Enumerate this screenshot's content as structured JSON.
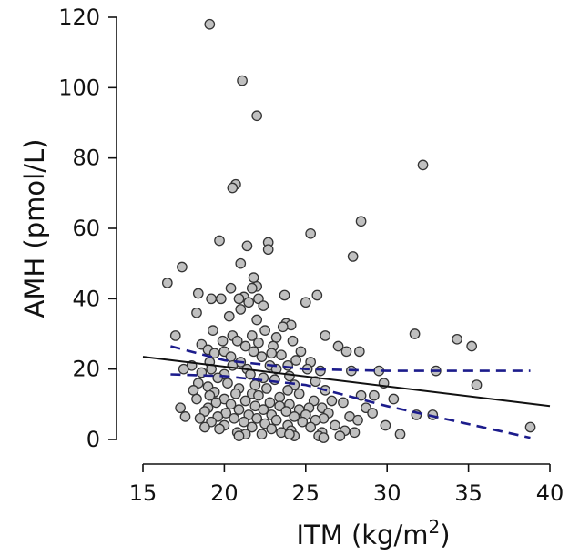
{
  "chart_data": {
    "type": "scatter",
    "xlabel": "ITM (kg/m",
    "xlabel_superscript": "2",
    "xlabel_close": ")",
    "ylabel": "AMH (pmol/L)",
    "xlim": [
      15,
      40
    ],
    "ylim": [
      0,
      120
    ],
    "xticks": [
      "15",
      "20",
      "25",
      "30",
      "35",
      "40"
    ],
    "yticks": [
      "0",
      "20",
      "40",
      "60",
      "80",
      "100",
      "120"
    ],
    "grid": false,
    "colors": {
      "point_fill": "#c0c0c0",
      "point_stroke": "#333333",
      "fit_line": "#111111",
      "ci_band": "#1c1c8c"
    },
    "points": [
      [
        19.1,
        118
      ],
      [
        21.1,
        102
      ],
      [
        22.0,
        92
      ],
      [
        32.2,
        78
      ],
      [
        20.7,
        72.5
      ],
      [
        20.5,
        71.5
      ],
      [
        28.4,
        62
      ],
      [
        25.3,
        58.5
      ],
      [
        19.7,
        56.5
      ],
      [
        22.7,
        56
      ],
      [
        21.4,
        55
      ],
      [
        22.7,
        54
      ],
      [
        27.9,
        52
      ],
      [
        21.0,
        50
      ],
      [
        17.4,
        49
      ],
      [
        21.8,
        46
      ],
      [
        16.5,
        44.5
      ],
      [
        22.0,
        43.5
      ],
      [
        20.4,
        43
      ],
      [
        21.7,
        43
      ],
      [
        18.4,
        41.5
      ],
      [
        23.7,
        41
      ],
      [
        25.7,
        41
      ],
      [
        21.2,
        40.5
      ],
      [
        19.2,
        40
      ],
      [
        19.8,
        40
      ],
      [
        20.9,
        40
      ],
      [
        22.1,
        40
      ],
      [
        21.5,
        39
      ],
      [
        25.0,
        39
      ],
      [
        22.4,
        38
      ],
      [
        21.0,
        37
      ],
      [
        18.3,
        36
      ],
      [
        20.3,
        35
      ],
      [
        22.0,
        34
      ],
      [
        23.8,
        33
      ],
      [
        24.1,
        32.5
      ],
      [
        23.6,
        32
      ],
      [
        19.3,
        31
      ],
      [
        22.5,
        31
      ],
      [
        17.0,
        29.5
      ],
      [
        20.5,
        29.5
      ],
      [
        21.7,
        29.5
      ],
      [
        23.2,
        29
      ],
      [
        26.2,
        29.5
      ],
      [
        31.7,
        30
      ],
      [
        34.3,
        28.5
      ],
      [
        19.9,
        28
      ],
      [
        20.8,
        28
      ],
      [
        22.1,
        27.5
      ],
      [
        24.2,
        28
      ],
      [
        18.6,
        27
      ],
      [
        21.3,
        26.5
      ],
      [
        23.0,
        26.5
      ],
      [
        27.0,
        26.5
      ],
      [
        35.2,
        26.5
      ],
      [
        19.0,
        25.5
      ],
      [
        20.0,
        25
      ],
      [
        21.8,
        25
      ],
      [
        24.7,
        25
      ],
      [
        27.5,
        25
      ],
      [
        28.3,
        25
      ],
      [
        19.4,
        24.5
      ],
      [
        22.9,
        24.5
      ],
      [
        23.5,
        24
      ],
      [
        20.4,
        23.5
      ],
      [
        22.3,
        23.5
      ],
      [
        24.4,
        22.5
      ],
      [
        19.1,
        22
      ],
      [
        21.0,
        22
      ],
      [
        25.3,
        22
      ],
      [
        18.0,
        21
      ],
      [
        20.5,
        21
      ],
      [
        22.8,
        21
      ],
      [
        23.9,
        21
      ],
      [
        25.1,
        20
      ],
      [
        17.5,
        20
      ],
      [
        19.2,
        20
      ],
      [
        21.4,
        20
      ],
      [
        23.2,
        20
      ],
      [
        25.9,
        19.5
      ],
      [
        27.8,
        19.5
      ],
      [
        29.5,
        19.5
      ],
      [
        33.0,
        19.5
      ],
      [
        18.6,
        19
      ],
      [
        20.0,
        18.5
      ],
      [
        21.6,
        18.5
      ],
      [
        24.0,
        18
      ],
      [
        19.6,
        17.5
      ],
      [
        22.4,
        17.5
      ],
      [
        23.1,
        17
      ],
      [
        25.6,
        16.5
      ],
      [
        18.4,
        16
      ],
      [
        20.2,
        16
      ],
      [
        21.9,
        15.5
      ],
      [
        24.3,
        15.5
      ],
      [
        29.8,
        16
      ],
      [
        35.5,
        15.5
      ],
      [
        19.0,
        15
      ],
      [
        20.9,
        14.5
      ],
      [
        22.6,
        14.5
      ],
      [
        18.1,
        14
      ],
      [
        23.9,
        14
      ],
      [
        26.2,
        14
      ],
      [
        19.4,
        13.5
      ],
      [
        20.7,
        13
      ],
      [
        21.7,
        13
      ],
      [
        24.6,
        13
      ],
      [
        19.1,
        12.5
      ],
      [
        22.1,
        12.5
      ],
      [
        23.4,
        12
      ],
      [
        28.4,
        12.5
      ],
      [
        29.2,
        12.5
      ],
      [
        30.4,
        11.5
      ],
      [
        18.3,
        11.5
      ],
      [
        20.0,
        11.5
      ],
      [
        21.3,
        11
      ],
      [
        25.5,
        11
      ],
      [
        26.6,
        11
      ],
      [
        19.5,
        10.5
      ],
      [
        22.8,
        10.5
      ],
      [
        24.0,
        10
      ],
      [
        27.3,
        10.5
      ],
      [
        20.4,
        10
      ],
      [
        21.9,
        9.5
      ],
      [
        23.4,
        9.5
      ],
      [
        17.3,
        9
      ],
      [
        19.0,
        9
      ],
      [
        25.2,
        9
      ],
      [
        26.0,
        9
      ],
      [
        28.7,
        9
      ],
      [
        20.9,
        8.5
      ],
      [
        22.4,
        8.5
      ],
      [
        24.6,
        8.5
      ],
      [
        18.8,
        8
      ],
      [
        23.8,
        8
      ],
      [
        26.4,
        7.5
      ],
      [
        29.1,
        7.5
      ],
      [
        31.8,
        7
      ],
      [
        32.8,
        7
      ],
      [
        20.1,
        7.5
      ],
      [
        21.5,
        7
      ],
      [
        22.9,
        7
      ],
      [
        25.0,
        7
      ],
      [
        17.6,
        6.5
      ],
      [
        19.6,
        6.5
      ],
      [
        24.3,
        6.5
      ],
      [
        27.7,
        6.5
      ],
      [
        18.5,
        6
      ],
      [
        20.6,
        6
      ],
      [
        22.0,
        6
      ],
      [
        26.1,
        6
      ],
      [
        23.2,
        5.5
      ],
      [
        25.6,
        5.5
      ],
      [
        28.2,
        5.5
      ],
      [
        19.2,
        5
      ],
      [
        21.2,
        5
      ],
      [
        24.8,
        5
      ],
      [
        22.5,
        4.5
      ],
      [
        20.0,
        4
      ],
      [
        23.9,
        4
      ],
      [
        26.8,
        4
      ],
      [
        29.9,
        4
      ],
      [
        18.8,
        3.5
      ],
      [
        21.7,
        3.5
      ],
      [
        25.3,
        3.5
      ],
      [
        38.8,
        3.5
      ],
      [
        19.7,
        3
      ],
      [
        22.9,
        3
      ],
      [
        24.1,
        2.5
      ],
      [
        27.4,
        2.5
      ],
      [
        20.8,
        2
      ],
      [
        23.5,
        2
      ],
      [
        26.0,
        2
      ],
      [
        28.0,
        2
      ],
      [
        30.8,
        1.5
      ],
      [
        21.3,
        1.5
      ],
      [
        22.3,
        1.5
      ],
      [
        24.3,
        1
      ],
      [
        25.8,
        1
      ],
      [
        27.1,
        1
      ],
      [
        26.1,
        0.5
      ],
      [
        20.9,
        1
      ],
      [
        24.0,
        1.5
      ]
    ],
    "fit_line": [
      [
        15,
        23.5
      ],
      [
        40,
        9.5
      ]
    ],
    "ci_upper": [
      [
        16.7,
        26.5
      ],
      [
        20,
        22.5
      ],
      [
        25,
        20
      ],
      [
        30,
        19.5
      ],
      [
        38.8,
        19.5
      ]
    ],
    "ci_lower": [
      [
        16.7,
        18.5
      ],
      [
        20,
        18
      ],
      [
        25,
        15.5
      ],
      [
        30,
        9.5
      ],
      [
        38.8,
        0.5
      ]
    ]
  }
}
